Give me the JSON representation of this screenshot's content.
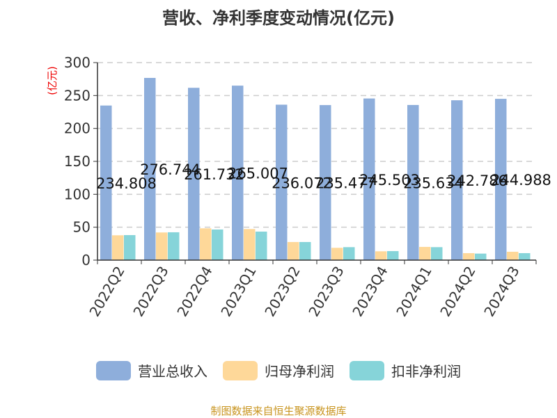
{
  "chart_data": {
    "type": "bar",
    "title": "营收、净利季度变动情况(亿元)",
    "ylabel": "(亿元)",
    "ylim": [
      0,
      300
    ],
    "yticks": [
      0,
      50,
      100,
      150,
      200,
      250,
      300
    ],
    "grid": true,
    "legend_placement": "bottom",
    "categories": [
      "2022Q2",
      "2022Q3",
      "2022Q4",
      "2023Q1",
      "2023Q2",
      "2023Q3",
      "2023Q4",
      "2024Q1",
      "2024Q2",
      "2024Q3"
    ],
    "series": [
      {
        "name": "营业总收入",
        "color": "#8eaedb",
        "values": [
          234.808,
          276.744,
          261.732,
          265.007,
          236.072,
          235.477,
          245.503,
          235.634,
          242.786,
          244.988
        ],
        "labels": [
          "234.808",
          "276.744",
          "261.732",
          "265.007",
          "236.072",
          "235.477",
          "245.503",
          "235.634",
          "242.786",
          "244.988"
        ]
      },
      {
        "name": "归母净利润",
        "color": "#fed899",
        "values": [
          37.7,
          42.0,
          48.3,
          47.2,
          27.5,
          18.7,
          13.4,
          20.1,
          10.6,
          12.7
        ]
      },
      {
        "name": "扣非净利润",
        "color": "#86d4d9",
        "values": [
          38.0,
          42.3,
          46.5,
          43.3,
          27.5,
          19.7,
          13.7,
          19.7,
          9.9,
          10.6
        ]
      }
    ]
  },
  "source": "制图数据来自恒生聚源数据库"
}
